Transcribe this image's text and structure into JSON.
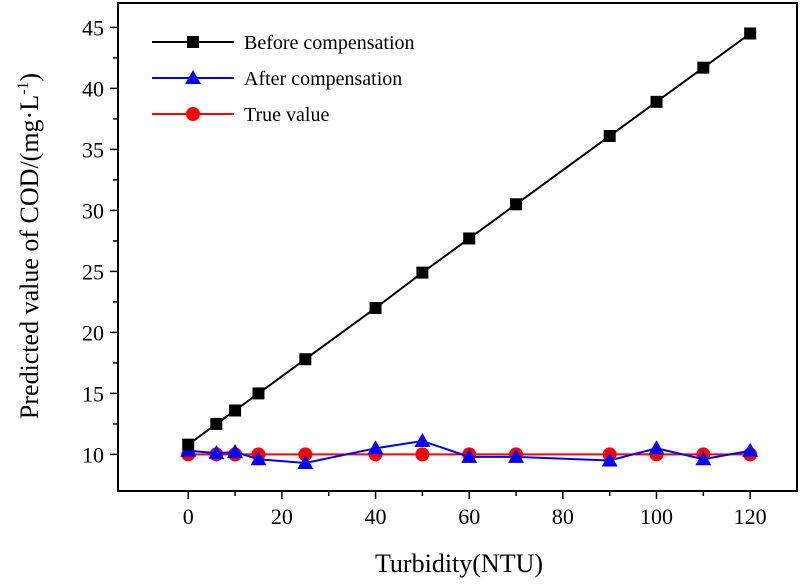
{
  "chart_data": {
    "type": "line",
    "xlabel": "Turbidity(NTU)",
    "ylabel": "Predicted value of COD/(mg·L",
    "ylabel_sup": "-1",
    "ylabel_close": ")",
    "xlim": [
      -15,
      130
    ],
    "ylim": [
      7,
      47
    ],
    "xticks": [
      0,
      20,
      40,
      60,
      80,
      100,
      120
    ],
    "yticks": [
      10,
      15,
      20,
      25,
      30,
      35,
      40,
      45
    ],
    "legend_position": "top-left",
    "series": [
      {
        "name": "Before compensation",
        "color": "#000000",
        "marker": "square",
        "x": [
          0,
          6,
          10,
          15,
          25,
          40,
          50,
          60,
          70,
          90,
          100,
          110,
          120
        ],
        "y": [
          10.8,
          12.5,
          13.6,
          15.0,
          17.8,
          22.0,
          24.9,
          27.7,
          30.5,
          36.1,
          38.9,
          41.7,
          44.5
        ]
      },
      {
        "name": "After compensation",
        "color": "#0000ff",
        "marker": "triangle",
        "x": [
          0,
          6,
          10,
          15,
          25,
          40,
          50,
          60,
          70,
          90,
          100,
          110,
          120
        ],
        "y": [
          10.3,
          10.1,
          10.2,
          9.6,
          9.3,
          10.5,
          11.1,
          9.8,
          9.8,
          9.5,
          10.5,
          9.6,
          10.3
        ]
      },
      {
        "name": "True value",
        "color": "#ff0000",
        "marker": "circle",
        "x": [
          0,
          6,
          10,
          15,
          25,
          40,
          50,
          60,
          70,
          90,
          100,
          110,
          120
        ],
        "y": [
          10,
          10,
          10,
          10,
          10,
          10,
          10,
          10,
          10,
          10,
          10,
          10,
          10
        ]
      }
    ]
  }
}
